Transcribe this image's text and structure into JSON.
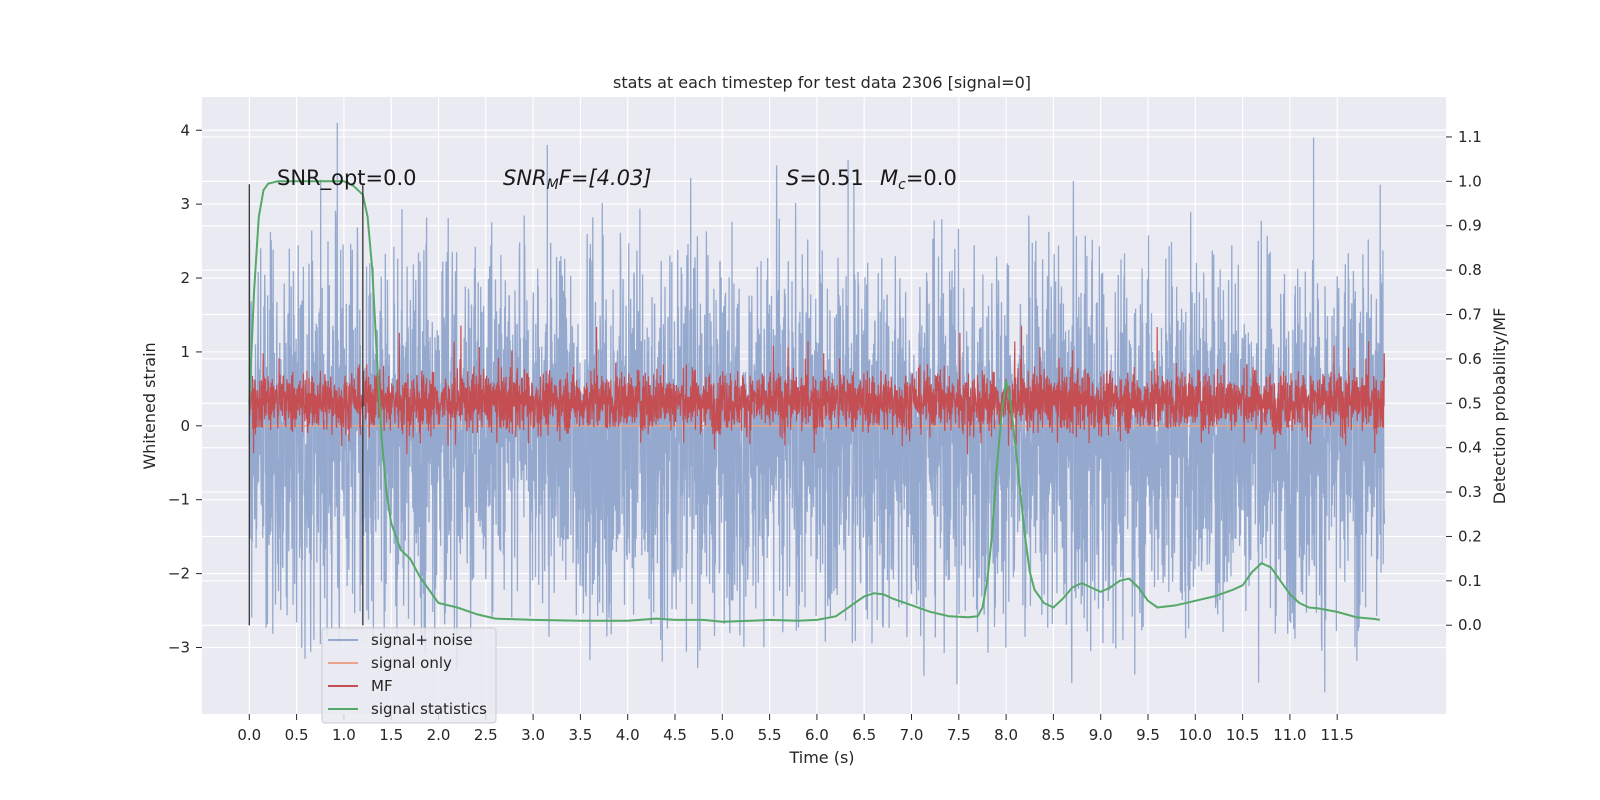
{
  "chart_data": {
    "type": "line",
    "title": "stats at each timestep for test data 2306 [signal=0]",
    "xlabel": "Time (s)",
    "ylabel_left": "Whitened strain",
    "ylabel_right": "Detection probability/MF",
    "xlim": [
      -0.5,
      12.65
    ],
    "ylim_left": [
      -3.9,
      4.45
    ],
    "ylim_right": [
      -0.2,
      1.19
    ],
    "xticks": [
      "0.0",
      "0.5",
      "1.0",
      "1.5",
      "2.0",
      "2.5",
      "3.0",
      "3.5",
      "4.0",
      "4.5",
      "5.0",
      "5.5",
      "6.0",
      "6.5",
      "7.0",
      "7.5",
      "8.0",
      "8.5",
      "9.0",
      "9.5",
      "10.0",
      "10.5",
      "11.0",
      "11.5"
    ],
    "yticks_left": [
      "−3",
      "−2",
      "−1",
      "0",
      "1",
      "2",
      "3",
      "4"
    ],
    "yticks_right": [
      "0.0",
      "0.1",
      "0.2",
      "0.3",
      "0.4",
      "0.5",
      "0.6",
      "0.7",
      "0.8",
      "0.9",
      "1.0",
      "1.1"
    ],
    "grid": true,
    "annotations": {
      "snr_opt": "SNR_opt=0.0",
      "snr_mf_label": "SNR",
      "snr_mf_sub": "M",
      "snr_mf_value": "F=[4.03]",
      "s_label": "S",
      "s_value": "=0.51",
      "mc_label": "M",
      "mc_sub": "c",
      "mc_value": "=0.0"
    },
    "legend": {
      "placement": "lower-left",
      "entries": [
        {
          "label": "signal+ noise",
          "color": "#95a9cf"
        },
        {
          "label": "signal only",
          "color": "#e8a58a"
        },
        {
          "label": "MF",
          "color": "#c44e52"
        },
        {
          "label": "signal statistics",
          "color": "#55a868"
        }
      ]
    },
    "series": [
      {
        "name": "signal+ noise",
        "axis": "left",
        "color": "#95a9cf",
        "x_range": [
          0.0,
          12.0
        ],
        "typical_band": [
          -1.75,
          1.45
        ],
        "envelope": [
          -2.7,
          2.3
        ],
        "notable_peaks": [
          {
            "x": 0.93,
            "y": 4.1
          },
          {
            "x": 11.25,
            "y": 3.9
          },
          {
            "x": 3.15,
            "y": 3.8
          },
          {
            "x": 6.33,
            "y": 3.6
          },
          {
            "x": 7.48,
            "y": -3.5
          }
        ]
      },
      {
        "name": "signal only",
        "axis": "left",
        "color": "#e8a58a",
        "x": [
          0.0,
          12.0
        ],
        "y": [
          0.0,
          0.0
        ]
      },
      {
        "name": "MF",
        "axis": "right",
        "color": "#c44e52",
        "x_range": [
          0.0,
          12.0
        ],
        "typical_band": [
          0.46,
          0.55
        ],
        "envelope": [
          0.45,
          0.62
        ]
      },
      {
        "name": "signal statistics",
        "axis": "right",
        "color": "#55a868",
        "x": [
          0.0,
          0.05,
          0.1,
          0.15,
          0.2,
          0.3,
          0.5,
          0.8,
          1.0,
          1.1,
          1.2,
          1.25,
          1.3,
          1.35,
          1.4,
          1.45,
          1.5,
          1.6,
          1.7,
          1.8,
          1.9,
          2.0,
          2.2,
          2.4,
          2.6,
          3.0,
          3.5,
          4.0,
          4.3,
          4.5,
          4.8,
          5.0,
          5.3,
          5.5,
          5.8,
          6.0,
          6.2,
          6.3,
          6.4,
          6.5,
          6.6,
          6.7,
          6.8,
          7.0,
          7.2,
          7.4,
          7.6,
          7.7,
          7.75,
          7.8,
          7.85,
          7.9,
          7.95,
          8.0,
          8.05,
          8.1,
          8.15,
          8.2,
          8.25,
          8.3,
          8.4,
          8.5,
          8.6,
          8.7,
          8.8,
          8.9,
          9.0,
          9.1,
          9.2,
          9.3,
          9.4,
          9.5,
          9.6,
          9.8,
          10.0,
          10.2,
          10.4,
          10.5,
          10.6,
          10.7,
          10.8,
          10.9,
          11.0,
          11.1,
          11.2,
          11.3,
          11.5,
          11.7,
          11.9,
          11.95
        ],
        "y": [
          0.5,
          0.75,
          0.92,
          0.98,
          0.995,
          1.0,
          1.0,
          1.0,
          1.0,
          0.99,
          0.97,
          0.92,
          0.8,
          0.6,
          0.42,
          0.3,
          0.23,
          0.17,
          0.15,
          0.11,
          0.08,
          0.05,
          0.04,
          0.025,
          0.015,
          0.012,
          0.01,
          0.01,
          0.015,
          0.012,
          0.012,
          0.008,
          0.01,
          0.012,
          0.01,
          0.012,
          0.02,
          0.035,
          0.05,
          0.065,
          0.072,
          0.07,
          0.06,
          0.045,
          0.03,
          0.02,
          0.018,
          0.02,
          0.04,
          0.1,
          0.2,
          0.35,
          0.47,
          0.55,
          0.5,
          0.4,
          0.3,
          0.2,
          0.12,
          0.08,
          0.05,
          0.04,
          0.06,
          0.085,
          0.095,
          0.085,
          0.075,
          0.085,
          0.1,
          0.105,
          0.085,
          0.055,
          0.04,
          0.045,
          0.055,
          0.065,
          0.08,
          0.09,
          0.12,
          0.14,
          0.13,
          0.1,
          0.07,
          0.05,
          0.04,
          0.038,
          0.03,
          0.018,
          0.014,
          0.012
        ]
      }
    ],
    "markers": {
      "vertical_lines_x": [
        0.0,
        1.2
      ]
    }
  }
}
